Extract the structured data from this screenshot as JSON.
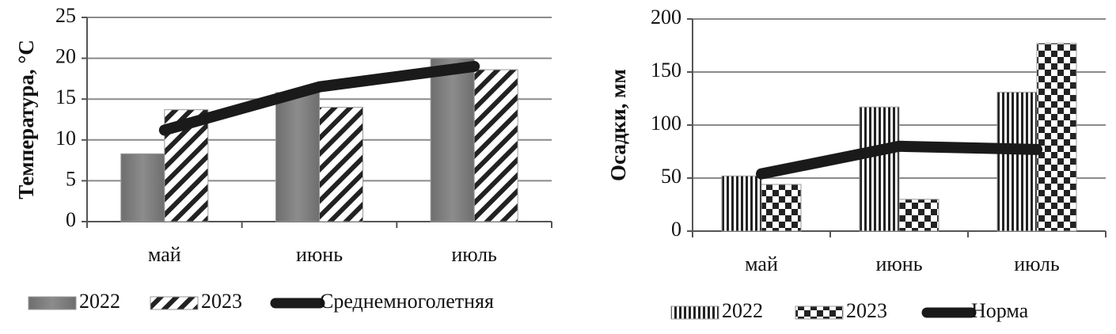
{
  "chart_data": [
    {
      "type": "bar",
      "y_label": "Температура, °C",
      "categories": [
        "май",
        "июнь",
        "июль"
      ],
      "series": [
        {
          "name": "2022",
          "color": "#808080",
          "pattern": "solid",
          "values": [
            8.3,
            15.8,
            20.0
          ]
        },
        {
          "name": "2023",
          "color": "#222222",
          "pattern": "diagonal",
          "values": [
            13.7,
            14.0,
            18.6
          ]
        },
        {
          "name": "Среднемноголетняя",
          "color": "#1a1a1a",
          "type": "line",
          "values": [
            11.2,
            16.5,
            19.0
          ]
        }
      ],
      "ylim": [
        0,
        25
      ],
      "yticks": [
        0,
        5,
        10,
        15,
        20,
        25
      ],
      "grid": true
    },
    {
      "type": "bar",
      "y_label": "Осадки, мм",
      "categories": [
        "май",
        "июнь",
        "июль"
      ],
      "series": [
        {
          "name": "2022",
          "color": "#222222",
          "pattern": "vertical",
          "values": [
            52,
            117,
            131
          ]
        },
        {
          "name": "2023",
          "color": "#222222",
          "pattern": "checker",
          "values": [
            44,
            30,
            177
          ]
        },
        {
          "name": "Норма",
          "color": "#1a1a1a",
          "type": "line",
          "values": [
            54,
            80,
            77
          ]
        }
      ],
      "ylim": [
        0,
        200
      ],
      "yticks": [
        0,
        50,
        100,
        150,
        200
      ],
      "grid": true
    }
  ]
}
